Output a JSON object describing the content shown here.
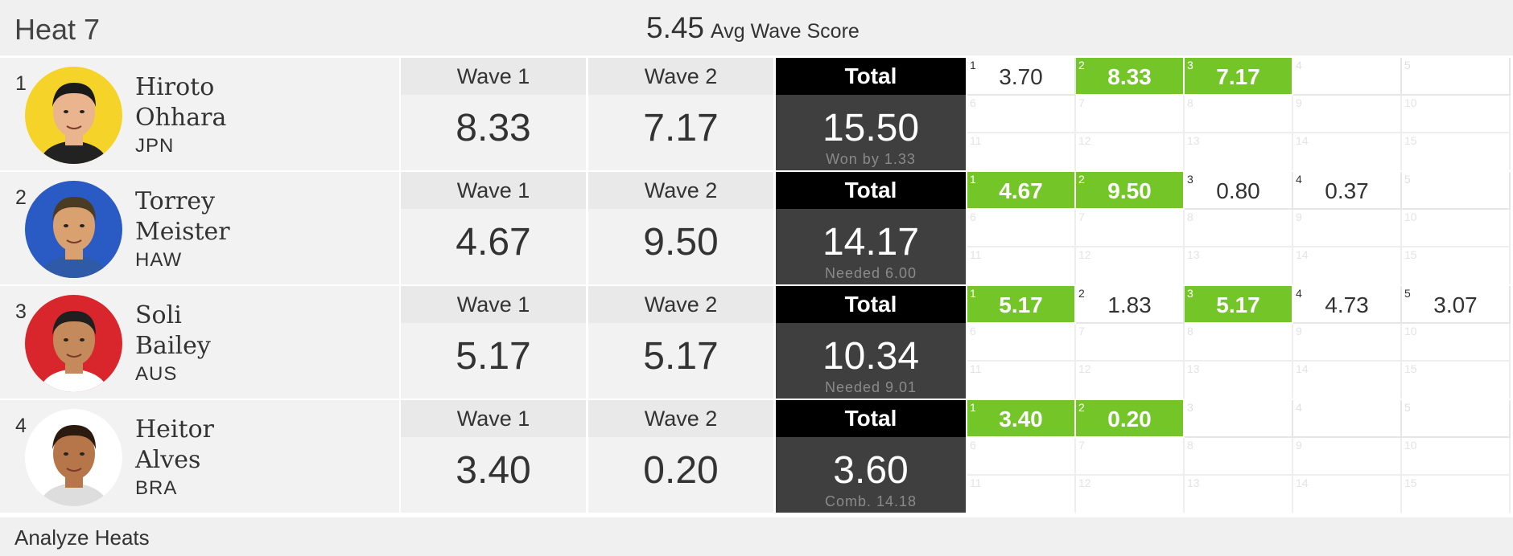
{
  "heat": {
    "title": "Heat 7",
    "avg_score": "5.45",
    "avg_label": "Avg Wave Score"
  },
  "rows": [
    {
      "place": "1",
      "first": "Hiroto",
      "last": "Ohhara",
      "country": "JPN",
      "avatar_color": "#f5d329",
      "wave1_label": "Wave 1",
      "wave2_label": "Wave 2",
      "wave1": "8.33",
      "wave2": "7.17",
      "total_label": "Total",
      "total": "15.50",
      "note": "Won by 1.33",
      "scores": [
        {
          "n": "1",
          "v": "3.70",
          "hl": false
        },
        {
          "n": "2",
          "v": "8.33",
          "hl": true
        },
        {
          "n": "3",
          "v": "7.17",
          "hl": true
        },
        {
          "n": "4",
          "v": "",
          "hl": false
        },
        {
          "n": "5",
          "v": "",
          "hl": false
        }
      ]
    },
    {
      "place": "2",
      "first": "Torrey",
      "last": "Meister",
      "country": "HAW",
      "avatar_color": "#2a5bc4",
      "wave1_label": "Wave 1",
      "wave2_label": "Wave 2",
      "wave1": "4.67",
      "wave2": "9.50",
      "total_label": "Total",
      "total": "14.17",
      "note": "Needed 6.00",
      "scores": [
        {
          "n": "1",
          "v": "4.67",
          "hl": true
        },
        {
          "n": "2",
          "v": "9.50",
          "hl": true
        },
        {
          "n": "3",
          "v": "0.80",
          "hl": false
        },
        {
          "n": "4",
          "v": "0.37",
          "hl": false
        },
        {
          "n": "5",
          "v": "",
          "hl": false
        }
      ]
    },
    {
      "place": "3",
      "first": "Soli",
      "last": "Bailey",
      "country": "AUS",
      "avatar_color": "#d9262c",
      "wave1_label": "Wave 1",
      "wave2_label": "Wave 2",
      "wave1": "5.17",
      "wave2": "5.17",
      "total_label": "Total",
      "total": "10.34",
      "note": "Needed 9.01",
      "scores": [
        {
          "n": "1",
          "v": "5.17",
          "hl": true
        },
        {
          "n": "2",
          "v": "1.83",
          "hl": false
        },
        {
          "n": "3",
          "v": "5.17",
          "hl": true
        },
        {
          "n": "4",
          "v": "4.73",
          "hl": false
        },
        {
          "n": "5",
          "v": "3.07",
          "hl": false
        }
      ]
    },
    {
      "place": "4",
      "first": "Heitor",
      "last": "Alves",
      "country": "BRA",
      "avatar_color": "#ffffff",
      "wave1_label": "Wave 1",
      "wave2_label": "Wave 2",
      "wave1": "3.40",
      "wave2": "0.20",
      "total_label": "Total",
      "total": "3.60",
      "note": "Comb. 14.18",
      "scores": [
        {
          "n": "1",
          "v": "3.40",
          "hl": true
        },
        {
          "n": "2",
          "v": "0.20",
          "hl": true
        },
        {
          "n": "3",
          "v": "",
          "hl": false
        },
        {
          "n": "4",
          "v": "",
          "hl": false
        },
        {
          "n": "5",
          "v": "",
          "hl": false
        }
      ]
    }
  ],
  "ghost_numbers": [
    "6",
    "7",
    "8",
    "9",
    "10",
    "11",
    "12",
    "13",
    "14",
    "15"
  ],
  "footer": {
    "label": "Analyze Heats"
  },
  "colors": {
    "highlight": "#74c628",
    "total_bg": "#3f3f3f",
    "total_head": "#000000"
  }
}
